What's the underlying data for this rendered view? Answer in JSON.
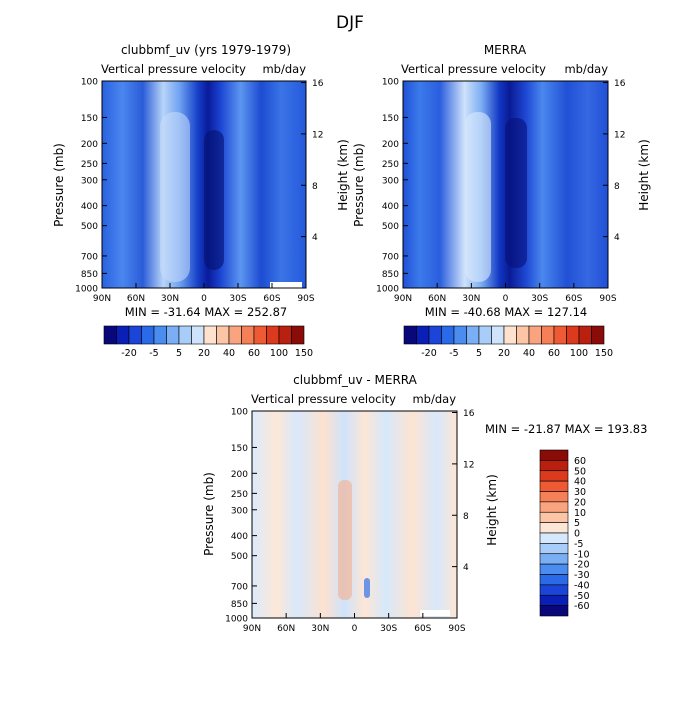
{
  "figure": {
    "title": "DJF"
  },
  "panels": [
    {
      "title": "clubbmf_uv (yrs 1979-1979)",
      "subtitle_left": "Vertical pressure velocity",
      "subtitle_right": "mb/day",
      "ylabel": "Pressure (mb)",
      "ylabel2": "Height (km)",
      "stats": "MIN = -31.64   MAX = 252.87"
    },
    {
      "title": "MERRA",
      "subtitle_left": "Vertical pressure velocity",
      "subtitle_right": "mb/day",
      "ylabel": "Pressure (mb)",
      "ylabel2": "Height (km)",
      "stats": "MIN = -40.68   MAX = 127.14"
    },
    {
      "title": "clubbmf_uv - MERRA",
      "subtitle_left": "Vertical pressure velocity",
      "subtitle_right": "mb/day",
      "ylabel": "Pressure (mb)",
      "ylabel2": "Height (km)",
      "stats": "MIN = -21.87   MAX = 193.83"
    }
  ],
  "chart_data": [
    {
      "type": "heatmap",
      "title": "clubbmf_uv (yrs 1979-1979)",
      "xlabel": "",
      "ylabel": "Pressure (mb)",
      "y2label": "Height (km)",
      "x_ticks": [
        "90N",
        "60N",
        "30N",
        "0",
        "30S",
        "60S",
        "90S"
      ],
      "x_values": [
        90,
        60,
        30,
        0,
        -30,
        -60,
        -90
      ],
      "y_ticks": [
        "100",
        "150",
        "200",
        "250",
        "300",
        "400",
        "500",
        "700",
        "850",
        "1000"
      ],
      "y_values": [
        100,
        150,
        200,
        250,
        300,
        400,
        500,
        700,
        850,
        1000
      ],
      "y2_ticks": [
        "16",
        "12",
        "8",
        "4"
      ],
      "ylim": [
        1000,
        100
      ],
      "min": -31.64,
      "max": 252.87,
      "colorbar_labels": [
        "-20",
        "-5",
        "5",
        "20",
        "40",
        "60",
        "100",
        "150"
      ],
      "colorbar_levels": [
        -30,
        -20,
        -10,
        -5,
        0,
        5,
        10,
        20,
        30,
        40,
        50,
        60,
        80,
        100,
        120,
        150
      ],
      "colorbar_colors": [
        "#08087a",
        "#0a1fb5",
        "#1a45d8",
        "#2a6ae8",
        "#4a8cf0",
        "#7aaff5",
        "#a8cdf8",
        "#cfe3fb",
        "#fde2cf",
        "#fcc6a6",
        "#f9a47e",
        "#f57f56",
        "#ee5a34",
        "#dc3a1c",
        "#b9200f",
        "#8a0c08"
      ]
    },
    {
      "type": "heatmap",
      "title": "MERRA",
      "xlabel": "",
      "ylabel": "Pressure (mb)",
      "y2label": "Height (km)",
      "x_ticks": [
        "90N",
        "60N",
        "30N",
        "0",
        "30S",
        "60S",
        "90S"
      ],
      "x_values": [
        90,
        60,
        30,
        0,
        -30,
        -60,
        -90
      ],
      "y_ticks": [
        "100",
        "150",
        "200",
        "250",
        "300",
        "400",
        "500",
        "700",
        "850",
        "1000"
      ],
      "y_values": [
        100,
        150,
        200,
        250,
        300,
        400,
        500,
        700,
        850,
        1000
      ],
      "y2_ticks": [
        "16",
        "12",
        "8",
        "4"
      ],
      "ylim": [
        1000,
        100
      ],
      "min": -40.68,
      "max": 127.14,
      "colorbar_labels": [
        "-20",
        "-5",
        "5",
        "20",
        "40",
        "60",
        "100",
        "150"
      ],
      "colorbar_levels": [
        -30,
        -20,
        -10,
        -5,
        0,
        5,
        10,
        20,
        30,
        40,
        50,
        60,
        80,
        100,
        120,
        150
      ],
      "colorbar_colors": [
        "#08087a",
        "#0a1fb5",
        "#1a45d8",
        "#2a6ae8",
        "#4a8cf0",
        "#7aaff5",
        "#a8cdf8",
        "#cfe3fb",
        "#fde2cf",
        "#fcc6a6",
        "#f9a47e",
        "#f57f56",
        "#ee5a34",
        "#dc3a1c",
        "#b9200f",
        "#8a0c08"
      ]
    },
    {
      "type": "heatmap",
      "title": "clubbmf_uv - MERRA",
      "xlabel": "",
      "ylabel": "Pressure (mb)",
      "y2label": "Height (km)",
      "x_ticks": [
        "90N",
        "60N",
        "30N",
        "0",
        "30S",
        "60S",
        "90S"
      ],
      "x_values": [
        90,
        60,
        30,
        0,
        -30,
        -60,
        -90
      ],
      "y_ticks": [
        "100",
        "150",
        "200",
        "250",
        "300",
        "400",
        "500",
        "700",
        "850",
        "1000"
      ],
      "y_values": [
        100,
        150,
        200,
        250,
        300,
        400,
        500,
        700,
        850,
        1000
      ],
      "y2_ticks": [
        "16",
        "12",
        "8",
        "4"
      ],
      "ylim": [
        1000,
        100
      ],
      "min": -21.87,
      "max": 193.83,
      "colorbar_labels": [
        "60",
        "50",
        "40",
        "30",
        "20",
        "10",
        "5",
        "0",
        "-5",
        "-10",
        "-20",
        "-30",
        "-40",
        "-50",
        "-60"
      ],
      "colorbar_colors": [
        "#8a0c08",
        "#b9200f",
        "#dc3a1c",
        "#ee5a34",
        "#f57f56",
        "#f9a47e",
        "#fcc6a6",
        "#fde6d5",
        "#d6e8fb",
        "#a8cdf8",
        "#7aaff5",
        "#4a8cf0",
        "#2a6ae8",
        "#1a45d8",
        "#0a1fb5",
        "#08087a"
      ]
    }
  ]
}
